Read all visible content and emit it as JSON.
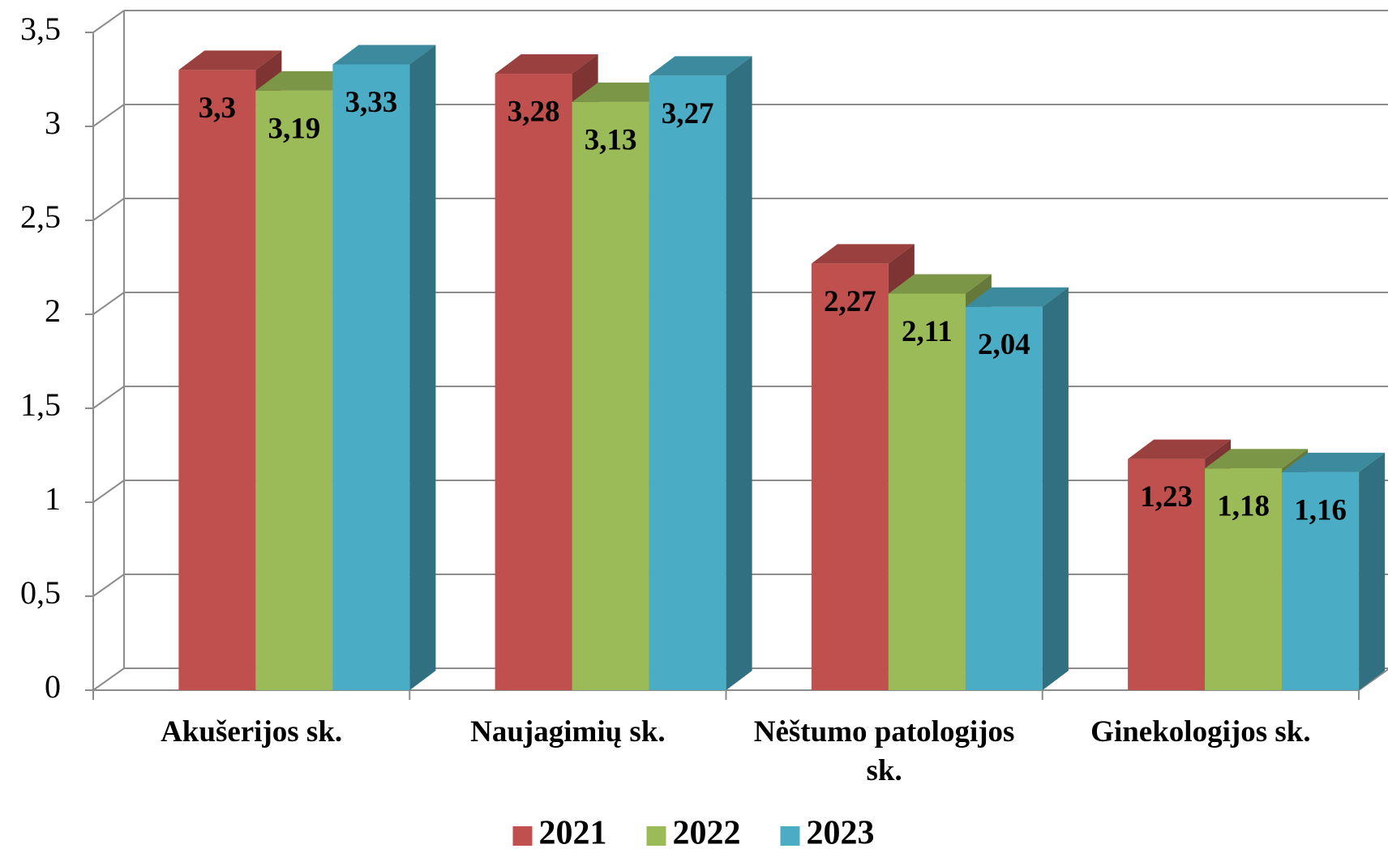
{
  "chart_data": {
    "type": "bar3d",
    "categories": [
      "Akušerijos sk.",
      "Naujagimių sk.",
      "Nėštumo patologijos sk.",
      "Ginekologijos sk."
    ],
    "series": [
      {
        "name": "2021",
        "color": "#c0504d",
        "values": [
          3.3,
          3.28,
          2.27,
          1.23
        ],
        "value_labels": [
          "3,3",
          "3,28",
          "2,27",
          "1,23"
        ]
      },
      {
        "name": "2022",
        "color": "#9bbb59",
        "values": [
          3.19,
          3.13,
          2.11,
          1.18
        ],
        "value_labels": [
          "3,19",
          "3,13",
          "2,11",
          "1,18"
        ]
      },
      {
        "name": "2023",
        "color": "#4bacc6",
        "values": [
          3.33,
          3.27,
          2.04,
          1.16
        ],
        "value_labels": [
          "3,33",
          "3,27",
          "2,04",
          "1,16"
        ]
      }
    ],
    "ylim": [
      0,
      3.5
    ],
    "yticks": [
      0,
      {
        "value": 0.5,
        "label": "0,5"
      },
      1,
      {
        "value": 1.5,
        "label": "1,5"
      },
      2,
      {
        "value": 2.5,
        "label": "2,5"
      },
      3,
      {
        "value": 3.5,
        "label": "3,5"
      }
    ],
    "grid": true,
    "legend": "bottom"
  }
}
